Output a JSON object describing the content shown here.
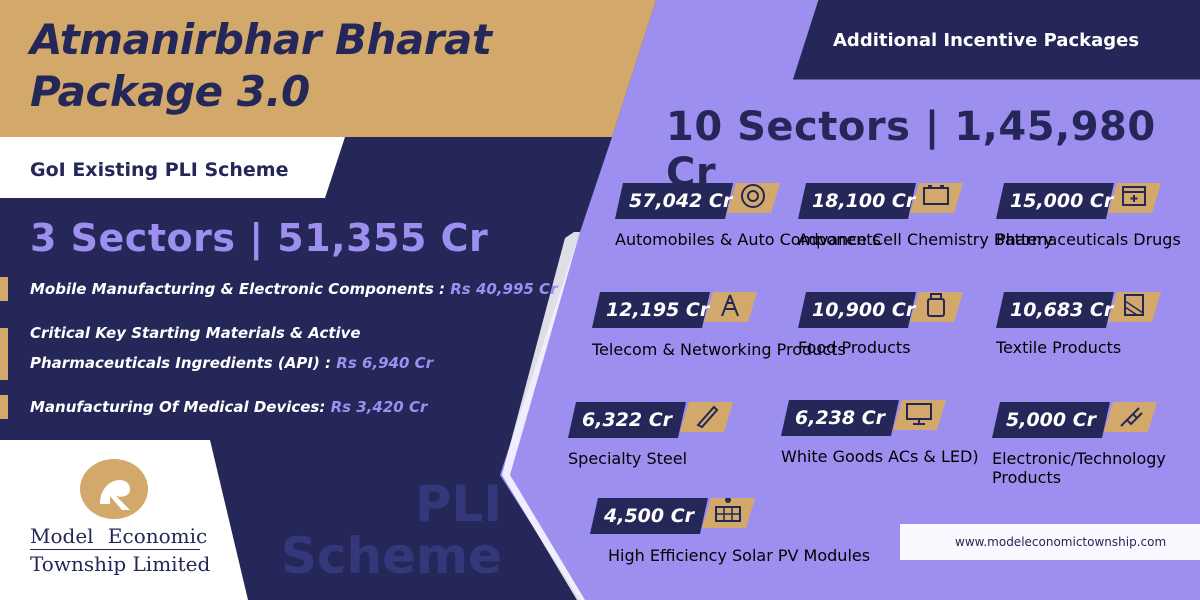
{
  "title": {
    "line1": "Atmanirbhar Bharat",
    "line2": "Package 3.0"
  },
  "left_panel": {
    "scheme_label": "GoI Existing PLI Scheme",
    "headline": "3 Sectors | 51,355 Cr",
    "items": [
      {
        "text": "Mobile Manufacturing & Electronic Components : ",
        "amount": "Rs 40,995 Cr"
      },
      {
        "text_line1": "Critical Key Starting Materials & Active",
        "text_line2": "Pharmaceuticals Ingredients (API) : ",
        "amount": "Rs 6,940 Cr"
      },
      {
        "text": "Manufacturing Of Medical Devices: ",
        "amount": "Rs 3,420 Cr"
      }
    ],
    "watermark_line1": "PLI",
    "watermark_line2": "Scheme"
  },
  "logo": {
    "line1": "Model Economic",
    "line2": "Township Limited"
  },
  "right_panel": {
    "banner": "Additional Incentive Packages",
    "headline": "10 Sectors | 1,45,980 Cr",
    "sectors": [
      {
        "amount": "57,042 Cr",
        "name": "Automobiles &\nAuto Components",
        "icon": "wheel-icon"
      },
      {
        "amount": "18,100 Cr",
        "name": "Advance Cell\nChemistry Battery",
        "icon": "battery-icon"
      },
      {
        "amount": "15,000 Cr",
        "name": "Pharmaceuticals Drugs",
        "icon": "pharmacy-icon"
      },
      {
        "amount": "12,195 Cr",
        "name": "Telecom & Networking\nProducts",
        "icon": "tower-icon"
      },
      {
        "amount": "10,900 Cr",
        "name": "Food Products",
        "icon": "food-bag-icon"
      },
      {
        "amount": "10,683 Cr",
        "name": "Textile Products",
        "icon": "fabric-icon"
      },
      {
        "amount": "6,322 Cr",
        "name": "Specialty Steel",
        "icon": "steel-icon"
      },
      {
        "amount": "6,238 Cr",
        "name": "White Goods  ACs & LED)",
        "icon": "monitor-icon"
      },
      {
        "amount": "5,000 Cr",
        "name": "Electronic/Technology\nProducts",
        "icon": "plug-icon"
      },
      {
        "amount": "4,500 Cr",
        "name": "High Efficiency Solar\nPV Modules",
        "icon": "solar-panel-icon"
      }
    ]
  },
  "website": "www.modeleconomictownship.com",
  "colors": {
    "navy": "#242758",
    "purple": "#9d8ff0",
    "gold": "#d2a96a",
    "white": "#ffffff"
  }
}
